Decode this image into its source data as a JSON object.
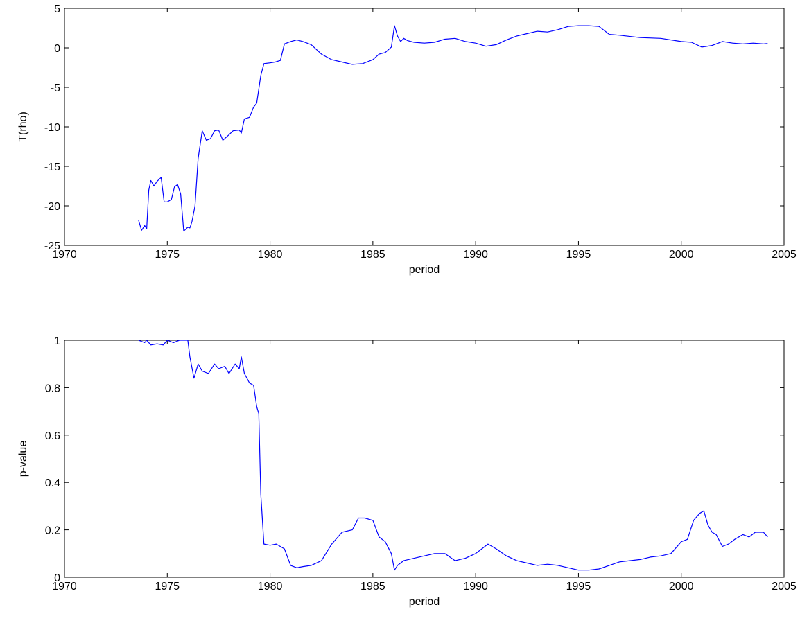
{
  "chart_data": [
    {
      "type": "line",
      "title": "",
      "xlabel": "period",
      "ylabel": "T(rho)",
      "xlim": [
        1970,
        2005
      ],
      "ylim": [
        -25,
        5
      ],
      "xticks": [
        1970,
        1975,
        1980,
        1985,
        1990,
        1995,
        2000,
        2005
      ],
      "yticks": [
        -25,
        -20,
        -15,
        -10,
        -5,
        0,
        5
      ],
      "grid": false,
      "color": "#0000ff",
      "series": [
        {
          "x": [
            1973.6,
            1973.75,
            1973.9,
            1974.0,
            1974.1,
            1974.2,
            1974.35,
            1974.5,
            1974.7,
            1974.85,
            1975.0,
            1975.2,
            1975.35,
            1975.5,
            1975.65,
            1975.8,
            1976.0,
            1976.1,
            1976.2,
            1976.35,
            1976.5,
            1976.7,
            1976.9,
            1977.1,
            1977.3,
            1977.5,
            1977.7,
            1978.0,
            1978.2,
            1978.5,
            1978.6,
            1978.75,
            1979.0,
            1979.2,
            1979.35,
            1979.55,
            1979.7,
            1980.0,
            1980.25,
            1980.5,
            1980.7,
            1981.0,
            1981.3,
            1981.6,
            1982.0,
            1982.5,
            1983.0,
            1983.5,
            1984.0,
            1984.5,
            1985.0,
            1985.3,
            1985.6,
            1985.9,
            1986.05,
            1986.2,
            1986.35,
            1986.5,
            1986.7,
            1987.0,
            1987.5,
            1988.0,
            1988.5,
            1989.0,
            1989.5,
            1990.0,
            1990.5,
            1991.0,
            1991.5,
            1992.0,
            1992.5,
            1993.0,
            1993.5,
            1994.0,
            1994.5,
            1995.0,
            1995.5,
            1996.0,
            1996.5,
            1997.0,
            1998.0,
            1999.0,
            2000.0,
            2000.5,
            2001.0,
            2001.5,
            2002.0,
            2002.5,
            2003.0,
            2003.5,
            2004.0,
            2004.2
          ],
          "y": [
            -21.8,
            -23.1,
            -22.5,
            -22.9,
            -18.0,
            -16.8,
            -17.5,
            -16.9,
            -16.4,
            -19.5,
            -19.5,
            -19.2,
            -17.6,
            -17.3,
            -18.5,
            -23.2,
            -22.7,
            -22.8,
            -22.0,
            -20.0,
            -14.0,
            -10.5,
            -11.7,
            -11.5,
            -10.5,
            -10.4,
            -11.7,
            -11.0,
            -10.5,
            -10.4,
            -10.8,
            -9.0,
            -8.8,
            -7.5,
            -7.0,
            -3.5,
            -2.0,
            -1.9,
            -1.8,
            -1.6,
            0.5,
            0.8,
            1.0,
            0.8,
            0.4,
            -0.8,
            -1.5,
            -1.8,
            -2.1,
            -2.0,
            -1.5,
            -0.8,
            -0.6,
            0.1,
            2.8,
            1.5,
            0.8,
            1.2,
            0.9,
            0.7,
            0.6,
            0.7,
            1.1,
            1.2,
            0.8,
            0.6,
            0.2,
            0.4,
            1.0,
            1.5,
            1.8,
            2.1,
            2.0,
            2.3,
            2.7,
            2.8,
            2.8,
            2.7,
            1.7,
            1.6,
            1.3,
            1.2,
            0.8,
            0.7,
            0.1,
            0.3,
            0.8,
            0.6,
            0.5,
            0.6,
            0.5,
            0.55
          ]
        }
      ]
    },
    {
      "type": "line",
      "title": "",
      "xlabel": "period",
      "ylabel": "p-value",
      "xlim": [
        1970,
        2005
      ],
      "ylim": [
        0,
        1
      ],
      "xticks": [
        1970,
        1975,
        1980,
        1985,
        1990,
        1995,
        2000,
        2005
      ],
      "yticks": [
        0,
        0.2,
        0.4,
        0.6,
        0.8,
        1
      ],
      "grid": false,
      "color": "#0000ff",
      "series": [
        {
          "x": [
            1973.6,
            1973.9,
            1974.0,
            1974.2,
            1974.5,
            1974.8,
            1975.0,
            1975.3,
            1975.6,
            1976.0,
            1976.1,
            1976.3,
            1976.5,
            1976.7,
            1977.0,
            1977.3,
            1977.5,
            1977.8,
            1978.0,
            1978.3,
            1978.5,
            1978.6,
            1978.75,
            1979.0,
            1979.2,
            1979.35,
            1979.45,
            1979.55,
            1979.7,
            1980.0,
            1980.3,
            1980.7,
            1981.0,
            1981.3,
            1981.6,
            1982.0,
            1982.5,
            1983.0,
            1983.5,
            1984.0,
            1984.3,
            1984.6,
            1985.0,
            1985.3,
            1985.6,
            1985.9,
            1986.05,
            1986.2,
            1986.5,
            1987.0,
            1987.5,
            1988.0,
            1988.5,
            1989.0,
            1989.5,
            1990.0,
            1990.3,
            1990.6,
            1991.0,
            1991.5,
            1992.0,
            1992.5,
            1993.0,
            1993.5,
            1994.0,
            1994.5,
            1995.0,
            1995.5,
            1996.0,
            1996.5,
            1997.0,
            1997.5,
            1998.0,
            1998.5,
            1999.0,
            1999.5,
            2000.0,
            2000.3,
            2000.6,
            2000.9,
            2001.1,
            2001.3,
            2001.5,
            2001.7,
            2002.0,
            2002.3,
            2002.6,
            2003.0,
            2003.3,
            2003.6,
            2004.0,
            2004.2
          ],
          "y": [
            1.0,
            0.99,
            1.0,
            0.98,
            0.985,
            0.98,
            1.0,
            0.99,
            1.0,
            1.0,
            0.93,
            0.84,
            0.9,
            0.87,
            0.86,
            0.9,
            0.88,
            0.89,
            0.86,
            0.9,
            0.88,
            0.93,
            0.86,
            0.82,
            0.81,
            0.72,
            0.69,
            0.35,
            0.14,
            0.135,
            0.14,
            0.12,
            0.05,
            0.04,
            0.045,
            0.05,
            0.07,
            0.14,
            0.19,
            0.2,
            0.25,
            0.25,
            0.24,
            0.17,
            0.15,
            0.1,
            0.03,
            0.05,
            0.07,
            0.08,
            0.09,
            0.1,
            0.1,
            0.07,
            0.08,
            0.1,
            0.12,
            0.14,
            0.12,
            0.09,
            0.07,
            0.06,
            0.05,
            0.055,
            0.05,
            0.04,
            0.03,
            0.03,
            0.035,
            0.05,
            0.065,
            0.07,
            0.075,
            0.085,
            0.09,
            0.1,
            0.15,
            0.16,
            0.24,
            0.27,
            0.28,
            0.22,
            0.19,
            0.18,
            0.13,
            0.14,
            0.16,
            0.18,
            0.17,
            0.19,
            0.19,
            0.17
          ]
        }
      ]
    }
  ]
}
